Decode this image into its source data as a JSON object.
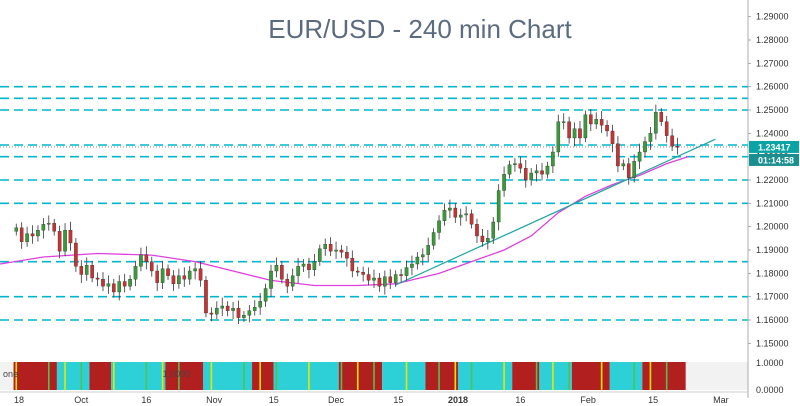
{
  "colors": {
    "background": "#ffffff",
    "level_lines": "#00b5cf",
    "moving_average": "#e040e0",
    "trendline": "#1aa6a0",
    "candle_up": "#3a9a3a",
    "candle_down": "#c83232",
    "wick": "#333333",
    "price_tag": "#0aa4a4",
    "time_tag": "#1a8f8f",
    "indicator_red": "#b21f1f",
    "indicator_cyan": "#2ed0d8",
    "indicator_yellow": "#e6e600",
    "indicator_green": "#4fc24f"
  },
  "chart_data": {
    "type": "candlestick",
    "title": "EUR/USD - 240 min Chart",
    "timeframe": "240 min",
    "ylim": [
      1.145,
      1.295
    ],
    "y_ticks": [
      "1.29000",
      "1.28000",
      "1.27000",
      "1.26000",
      "1.25000",
      "1.24000",
      "1.23000",
      "1.22000",
      "1.21000",
      "1.20000",
      "1.19000",
      "1.18000",
      "1.17000",
      "1.16000",
      "1.15000"
    ],
    "x_ticks": [
      "18",
      "Oct",
      "16",
      "Nov",
      "15",
      "Dec",
      "15",
      "2018",
      "16",
      "Feb",
      "15",
      "Mar"
    ],
    "x_tick_positions": [
      0.5,
      12,
      24,
      36.5,
      47.5,
      59,
      70.5,
      81.5,
      93,
      105.5,
      117.5,
      130
    ],
    "xlim": [
      -3,
      135
    ],
    "last_price": "1.23417",
    "countdown": "01:14:58",
    "horizontal_levels": [
      1.26,
      1.255,
      1.25,
      1.235,
      1.23,
      1.22,
      1.21,
      1.185,
      1.17,
      1.16
    ],
    "trendline": {
      "start": [
        70,
        1.175
      ],
      "end": [
        129,
        1.2375
      ]
    },
    "close_series": [
      1.1995,
      1.1935,
      1.197,
      1.196,
      1.1985,
      1.201,
      1.2015,
      1.198,
      1.1895,
      1.1985,
      1.193,
      1.183,
      1.1795,
      1.1835,
      1.178,
      1.1775,
      1.1745,
      1.1755,
      1.172,
      1.1765,
      1.1745,
      1.1775,
      1.183,
      1.188,
      1.185,
      1.181,
      1.176,
      1.182,
      1.179,
      1.1755,
      1.179,
      1.1775,
      1.181,
      1.182,
      1.177,
      1.163,
      1.1625,
      1.165,
      1.166,
      1.164,
      1.165,
      1.161,
      1.162,
      1.164,
      1.1655,
      1.168,
      1.1735,
      1.181,
      1.1835,
      1.1775,
      1.1745,
      1.179,
      1.183,
      1.184,
      1.1815,
      1.185,
      1.1905,
      1.1925,
      1.1895,
      1.19,
      1.189,
      1.1865,
      1.181,
      1.1805,
      1.1795,
      1.177,
      1.178,
      1.1745,
      1.1785,
      1.176,
      1.1795,
      1.179,
      1.1825,
      1.184,
      1.187,
      1.188,
      1.192,
      1.1975,
      1.2025,
      1.207,
      1.208,
      1.204,
      1.205,
      1.2055,
      1.201,
      1.196,
      1.1935,
      1.195,
      1.202,
      1.2155,
      1.2225,
      1.2265,
      1.227,
      1.225,
      1.22,
      1.223,
      1.224,
      1.2225,
      1.226,
      1.232,
      1.245,
      1.245,
      1.238,
      1.242,
      1.238,
      1.248,
      1.244,
      1.246,
      1.2435,
      1.241,
      1.2355,
      1.226,
      1.227,
      1.221,
      1.228,
      1.232,
      1.2365,
      1.24,
      1.249,
      1.245,
      1.239,
      1.2345,
      1.2342
    ],
    "moving_average": [
      [
        -3,
        1.184
      ],
      [
        5,
        1.187
      ],
      [
        15,
        1.1885
      ],
      [
        25,
        1.1878
      ],
      [
        33,
        1.185
      ],
      [
        40,
        1.181
      ],
      [
        47,
        1.177
      ],
      [
        55,
        1.1748
      ],
      [
        63,
        1.1748
      ],
      [
        70,
        1.1755
      ],
      [
        78,
        1.18
      ],
      [
        84,
        1.185
      ],
      [
        90,
        1.19
      ],
      [
        95,
        1.196
      ],
      [
        100,
        1.206
      ],
      [
        105,
        1.213
      ],
      [
        110,
        1.218
      ],
      [
        115,
        1.222
      ],
      [
        120,
        1.227
      ],
      [
        124,
        1.23
      ]
    ],
    "indicator": {
      "label_left": "one",
      "label_value": "1.0000",
      "scale_top": "1.0000",
      "scale_bottom": "0.0000",
      "segments": [
        [
          "#b21f1f",
          0,
          8
        ],
        [
          "#2ed0d8",
          8,
          14
        ],
        [
          "#b21f1f",
          14,
          18
        ],
        [
          "#2ed0d8",
          18,
          28
        ],
        [
          "#b21f1f",
          28,
          35
        ],
        [
          "#2ed0d8",
          35,
          44
        ],
        [
          "#b21f1f",
          44,
          48
        ],
        [
          "#2ed0d8",
          48,
          60
        ],
        [
          "#b21f1f",
          60,
          68
        ],
        [
          "#2ed0d8",
          68,
          76
        ],
        [
          "#b21f1f",
          76,
          82
        ],
        [
          "#2ed0d8",
          82,
          92
        ],
        [
          "#b21f1f",
          92,
          97
        ],
        [
          "#2ed0d8",
          97,
          103
        ],
        [
          "#b21f1f",
          103,
          110
        ],
        [
          "#2ed0d8",
          110,
          116
        ],
        [
          "#b21f1f",
          116,
          124
        ]
      ]
    }
  }
}
